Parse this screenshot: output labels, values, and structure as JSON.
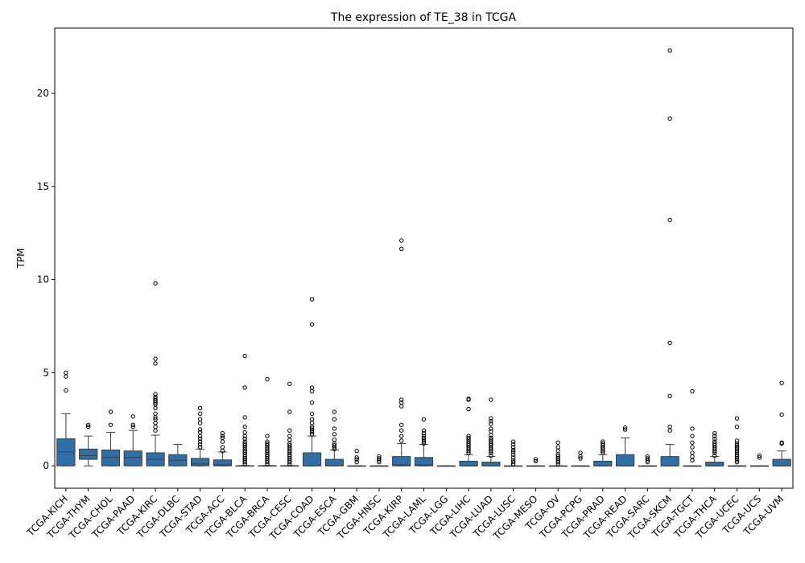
{
  "chart_data": {
    "type": "box",
    "title": "The expression of TE_38 in TCGA",
    "xlabel": "",
    "ylabel": "TPM",
    "ylim": [
      -1.2,
      23.5
    ],
    "yticks": [
      0,
      5,
      10,
      15,
      20
    ],
    "box_color": "#2f6fa8",
    "grid": false,
    "categories": [
      "TCGA-KICH",
      "TCGA-THYM",
      "TCGA-CHOL",
      "TCGA-PAAD",
      "TCGA-KIRC",
      "TCGA-DLBC",
      "TCGA-STAD",
      "TCGA-ACC",
      "TCGA-BLCA",
      "TCGA-BRCA",
      "TCGA-CESC",
      "TCGA-COAD",
      "TCGA-ESCA",
      "TCGA-GBM",
      "TCGA-HNSC",
      "TCGA-KIRP",
      "TCGA-LAML",
      "TCGA-LGG",
      "TCGA-LIHC",
      "TCGA-LUAD",
      "TCGA-LUSC",
      "TCGA-MESO",
      "TCGA-OV",
      "TCGA-PCPG",
      "TCGA-PRAD",
      "TCGA-READ",
      "TCGA-SARC",
      "TCGA-SKCM",
      "TCGA-TGCT",
      "TCGA-THCA",
      "TCGA-UCEC",
      "TCGA-UCS",
      "TCGA-UVM"
    ],
    "boxes": [
      {
        "whislo": 0,
        "q1": 0,
        "med": 0.75,
        "q3": 1.45,
        "whishi": 2.8,
        "fliers": [
          4.05,
          4.8,
          5.0
        ]
      },
      {
        "whislo": 0,
        "q1": 0.35,
        "med": 0.55,
        "q3": 0.9,
        "whishi": 1.6,
        "fliers": [
          2.1,
          2.2
        ]
      },
      {
        "whislo": 0,
        "q1": 0,
        "med": 0.45,
        "q3": 0.85,
        "whishi": 1.8,
        "fliers": [
          2.2,
          2.9
        ]
      },
      {
        "whislo": 0,
        "q1": 0,
        "med": 0.45,
        "q3": 0.8,
        "whishi": 1.9,
        "fliers": [
          2.1,
          2.2,
          2.65
        ]
      },
      {
        "whislo": 0,
        "q1": 0,
        "med": 0.35,
        "q3": 0.7,
        "whishi": 1.65,
        "fliers": [
          1.9,
          2.1,
          2.3,
          2.5,
          2.6,
          2.8,
          3.1,
          3.3,
          3.4,
          3.5,
          3.6,
          3.7,
          3.85,
          5.5,
          5.75,
          9.8
        ]
      },
      {
        "whislo": 0,
        "q1": 0,
        "med": 0.3,
        "q3": 0.6,
        "whishi": 1.15,
        "fliers": []
      },
      {
        "whislo": 0,
        "q1": 0,
        "med": 0.1,
        "q3": 0.4,
        "whishi": 0.9,
        "fliers": [
          1.0,
          1.15,
          1.3,
          1.45,
          1.6,
          1.8,
          1.95,
          2.3,
          2.5,
          2.8,
          3.1
        ]
      },
      {
        "whislo": 0,
        "q1": 0,
        "med": 0.05,
        "q3": 0.32,
        "whishi": 0.75,
        "fliers": [
          0.8,
          1.0,
          1.3,
          1.5,
          1.6,
          1.75
        ]
      },
      {
        "whislo": 0,
        "q1": 0,
        "med": 0,
        "q3": 0.01,
        "whishi": 0.02,
        "fliers": [
          0.1,
          0.2,
          0.3,
          0.4,
          0.5,
          0.6,
          0.7,
          0.8,
          0.9,
          1.0,
          1.1,
          1.2,
          1.3,
          1.45,
          1.6,
          1.8,
          2.1,
          2.6,
          4.2,
          5.9
        ]
      },
      {
        "whislo": 0,
        "q1": 0,
        "med": 0,
        "q3": 0.01,
        "whishi": 0.02,
        "fliers": [
          0.1,
          0.2,
          0.3,
          0.4,
          0.5,
          0.6,
          0.7,
          0.8,
          0.9,
          1.0,
          1.1,
          1.2,
          1.3,
          1.6,
          4.65
        ]
      },
      {
        "whislo": 0,
        "q1": 0,
        "med": 0,
        "q3": 0.01,
        "whishi": 0.02,
        "fliers": [
          0.1,
          0.2,
          0.3,
          0.4,
          0.5,
          0.6,
          0.7,
          0.8,
          0.9,
          1.0,
          1.1,
          1.2,
          1.4,
          1.6,
          1.9,
          2.9,
          4.4
        ]
      },
      {
        "whislo": 0,
        "q1": 0,
        "med": 0,
        "q3": 0.7,
        "whishi": 1.6,
        "fliers": [
          1.7,
          1.8,
          1.9,
          2.0,
          2.1,
          2.3,
          2.5,
          2.8,
          3.4,
          4.0,
          4.2,
          7.6,
          8.95
        ]
      },
      {
        "whislo": 0,
        "q1": 0,
        "med": 0.02,
        "q3": 0.35,
        "whishi": 0.85,
        "fliers": [
          0.9,
          1.0,
          1.1,
          1.2,
          1.4,
          1.7,
          2.0,
          2.5,
          2.9
        ]
      },
      {
        "whislo": 0,
        "q1": 0,
        "med": 0,
        "q3": 0,
        "whishi": 0,
        "fliers": [
          0.2,
          0.35,
          0.45,
          0.8
        ]
      },
      {
        "whislo": 0,
        "q1": 0,
        "med": 0,
        "q3": 0,
        "whishi": 0,
        "fliers": [
          0.2,
          0.3,
          0.4,
          0.5
        ]
      },
      {
        "whislo": 0,
        "q1": 0,
        "med": 0.05,
        "q3": 0.5,
        "whishi": 1.2,
        "fliers": [
          1.35,
          1.6,
          1.9,
          2.2,
          3.2,
          3.4,
          3.55,
          11.65,
          12.1
        ]
      },
      {
        "whislo": 0,
        "q1": 0,
        "med": 0.05,
        "q3": 0.45,
        "whishi": 1.15,
        "fliers": [
          1.2,
          1.3,
          1.4,
          1.5,
          1.6,
          1.75,
          1.9,
          2.5
        ]
      },
      {
        "whislo": 0,
        "q1": 0,
        "med": 0,
        "q3": 0,
        "whishi": 0,
        "fliers": []
      },
      {
        "whislo": 0,
        "q1": 0,
        "med": 0,
        "q3": 0.25,
        "whishi": 0.6,
        "fliers": [
          0.7,
          0.8,
          0.9,
          1.0,
          1.1,
          1.2,
          1.3,
          1.4,
          1.5,
          1.6,
          3.05,
          3.55,
          3.6
        ]
      },
      {
        "whislo": 0,
        "q1": 0,
        "med": 0,
        "q3": 0.2,
        "whishi": 0.5,
        "fliers": [
          0.55,
          0.7,
          0.8,
          0.9,
          1.0,
          1.1,
          1.2,
          1.3,
          1.4,
          1.5,
          1.65,
          1.85,
          2.0,
          2.25,
          2.4,
          2.55,
          3.55
        ]
      },
      {
        "whislo": 0,
        "q1": 0,
        "med": 0,
        "q3": 0,
        "whishi": 0,
        "fliers": [
          0.1,
          0.2,
          0.3,
          0.45,
          0.6,
          0.75,
          0.85,
          1.0,
          1.15,
          1.3
        ]
      },
      {
        "whislo": 0,
        "q1": 0,
        "med": 0,
        "q3": 0,
        "whishi": 0,
        "fliers": [
          0.25,
          0.35
        ]
      },
      {
        "whislo": 0,
        "q1": 0,
        "med": 0,
        "q3": 0,
        "whishi": 0,
        "fliers": [
          0.1,
          0.2,
          0.3,
          0.4,
          0.5,
          0.6,
          0.8,
          1.0,
          1.25
        ]
      },
      {
        "whislo": 0,
        "q1": 0,
        "med": 0,
        "q3": 0,
        "whishi": 0,
        "fliers": [
          0.4,
          0.5,
          0.7
        ]
      },
      {
        "whislo": 0,
        "q1": 0,
        "med": 0,
        "q3": 0.25,
        "whishi": 0.6,
        "fliers": [
          0.7,
          0.8,
          0.9,
          1.0,
          1.1,
          1.2,
          1.3
        ]
      },
      {
        "whislo": 0,
        "q1": 0,
        "med": 0,
        "q3": 0.6,
        "whishi": 1.5,
        "fliers": [
          1.95,
          2.05
        ]
      },
      {
        "whislo": 0,
        "q1": 0,
        "med": 0,
        "q3": 0,
        "whishi": 0,
        "fliers": [
          0.2,
          0.3,
          0.4,
          0.5
        ]
      },
      {
        "whislo": 0,
        "q1": 0,
        "med": 0,
        "q3": 0.5,
        "whishi": 1.15,
        "fliers": [
          1.9,
          2.1,
          3.75,
          6.6,
          13.2,
          18.65,
          22.3
        ]
      },
      {
        "whislo": 0,
        "q1": 0,
        "med": 0,
        "q3": 0,
        "whishi": 0,
        "fliers": [
          0.3,
          0.5,
          0.7,
          1.0,
          1.25,
          1.6,
          2.0,
          4.0
        ]
      },
      {
        "whislo": 0,
        "q1": 0,
        "med": 0,
        "q3": 0.2,
        "whishi": 0.5,
        "fliers": [
          0.55,
          0.7,
          0.8,
          0.9,
          1.0,
          1.1,
          1.2,
          1.3,
          1.45,
          1.6,
          1.75
        ]
      },
      {
        "whislo": 0,
        "q1": 0,
        "med": 0,
        "q3": 0,
        "whishi": 0,
        "fliers": [
          0.2,
          0.3,
          0.4,
          0.5,
          0.6,
          0.7,
          0.8,
          0.9,
          1.0,
          1.1,
          1.2,
          1.35,
          2.1,
          2.55
        ]
      },
      {
        "whislo": 0,
        "q1": 0,
        "med": 0,
        "q3": 0,
        "whishi": 0,
        "fliers": [
          0.45,
          0.55
        ]
      },
      {
        "whislo": 0,
        "q1": 0,
        "med": 0,
        "q3": 0.35,
        "whishi": 0.8,
        "fliers": [
          1.2,
          1.25,
          2.75,
          4.45
        ]
      }
    ]
  }
}
